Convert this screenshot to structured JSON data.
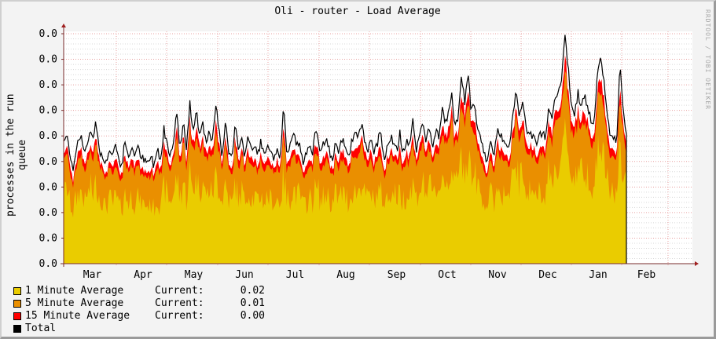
{
  "title": "Oli - router - Load Average",
  "watermark": "RRDTOOL / TOBI OETIKER",
  "colors": {
    "background": "#f3f3f3",
    "canvas": "#ffffff",
    "grid_major": "#e8a0a0",
    "grid_minor": "#d8d8d8",
    "axis": "#7a2b2b",
    "one_min": "#EACC00",
    "five_min": "#EA8F00",
    "fifteen_min": "#FF0000",
    "total": "#000000"
  },
  "legend": [
    {
      "label": "1 Minute Average",
      "current_label": "Current:",
      "current_value": "0.02",
      "color": "#EACC00"
    },
    {
      "label": "5 Minute Average",
      "current_label": "Current:",
      "current_value": "0.01",
      "color": "#EA8F00"
    },
    {
      "label": "15 Minute Average",
      "current_label": "Current:",
      "current_value": "0.00",
      "color": "#FF0000"
    },
    {
      "label": "Total",
      "current_label": "",
      "current_value": "",
      "color": "#000000"
    }
  ],
  "chart_data": {
    "type": "area",
    "title": "Oli - router - Load Average",
    "xlabel": "",
    "ylabel": "processes in the run queue",
    "y_tick_labels": [
      "0.0",
      "0.0",
      "0.0",
      "0.0",
      "0.0",
      "0.0",
      "0.0",
      "0.0",
      "0.0",
      "0.0"
    ],
    "x_tick_labels": [
      "Mar",
      "Apr",
      "May",
      "Jun",
      "Jul",
      "Aug",
      "Sep",
      "Oct",
      "Nov",
      "Dec",
      "Jan",
      "Feb"
    ],
    "ylim": [
      0,
      9
    ],
    "grid": true,
    "legend_position": "bottom",
    "stacked": true,
    "series": [
      {
        "name": "1 Minute Average",
        "color": "#EACC00",
        "current": 0.02
      },
      {
        "name": "5 Minute Average",
        "color": "#EA8F00",
        "current": 0.01
      },
      {
        "name": "15 Minute Average",
        "color": "#FF0000",
        "current": 0.0
      },
      {
        "name": "Total",
        "color": "#000000"
      }
    ],
    "data_end_fraction": 0.895,
    "total_profile": [
      4.8,
      5.0,
      4.3,
      3.7,
      4.6,
      5.1,
      4.6,
      4.4,
      5.2,
      5.0,
      5.6,
      4.5,
      4.1,
      3.9,
      4.5,
      4.2,
      4.7,
      4.1,
      3.8,
      4.9,
      4.0,
      4.6,
      4.3,
      4.5,
      4.2,
      4.0,
      3.9,
      4.2,
      3.8,
      4.6,
      4.0,
      5.3,
      4.7,
      4.3,
      4.9,
      5.9,
      4.5,
      5.6,
      4.4,
      6.3,
      5.2,
      6.1,
      5.0,
      5.7,
      4.6,
      5.1,
      4.7,
      6.2,
      5.4,
      4.2,
      5.6,
      4.4,
      4.1,
      5.3,
      4.6,
      4.9,
      4.2,
      5.1,
      4.4,
      4.6,
      4.3,
      4.8,
      4.2,
      4.5,
      4.4,
      3.9,
      4.6,
      4.1,
      6.3,
      4.2,
      4.7,
      5.1,
      4.7,
      4.6,
      3.9,
      4.3,
      4.8,
      4.4,
      5.2,
      4.5,
      4.6,
      4.9,
      4.5,
      4.0,
      4.6,
      4.3,
      4.9,
      4.6,
      4.2,
      4.7,
      5.3,
      4.8,
      5.5,
      4.9,
      4.3,
      4.8,
      4.4,
      4.7,
      5.2,
      4.1,
      4.6,
      5.0,
      4.7,
      4.4,
      5.1,
      4.3,
      4.9,
      4.6,
      5.6,
      4.5,
      4.8,
      5.7,
      4.8,
      5.3,
      4.6,
      5.2,
      4.9,
      6.0,
      5.6,
      5.8,
      6.7,
      5.4,
      5.8,
      7.3,
      6.3,
      7.5,
      5.9,
      6.2,
      5.2,
      4.8,
      4.4,
      3.9,
      4.8,
      4.3,
      5.2,
      5.0,
      4.9,
      4.4,
      4.6,
      6.0,
      6.8,
      5.7,
      6.4,
      5.3,
      5.2,
      5.0,
      4.7,
      4.9,
      5.2,
      4.9,
      6.1,
      5.8,
      6.6,
      6.8,
      7.2,
      8.9,
      7.7,
      6.3,
      5.9,
      6.7,
      6.2,
      6.6,
      6.0,
      5.7,
      5.3,
      7.4,
      8.1,
      7.3,
      5.8,
      5.0,
      4.9,
      4.7,
      7.8,
      6.0,
      5.2,
      0.0,
      0.0,
      0.0,
      0.0,
      0.0,
      0.0,
      0.0,
      0.0,
      0.0,
      0.0,
      0.0,
      0.0,
      0.0,
      0.0,
      0.0,
      0.0,
      0.0,
      0.0,
      0.0,
      0.0,
      0.0
    ]
  }
}
